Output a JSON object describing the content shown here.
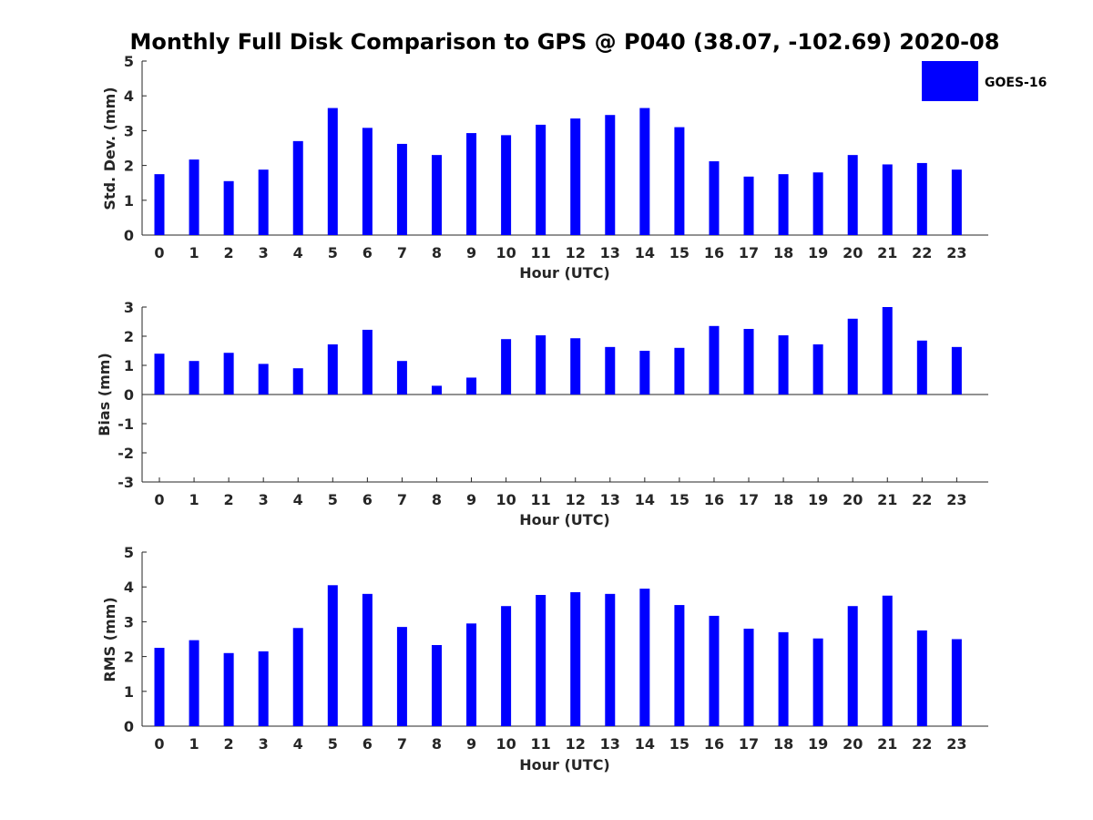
{
  "figure": {
    "title": "Monthly Full Disk Comparison to GPS @ P040 (38.07, -102.69) 2020-08",
    "bar_color": "#0000ff",
    "axis_color": "#262626",
    "legend": {
      "label": "GOES-16",
      "placement": "top-right"
    }
  },
  "chart_data": [
    {
      "type": "bar",
      "xlabel": "Hour (UTC)",
      "ylabel": "Std. Dev. (mm)",
      "ylim": [
        0,
        5
      ],
      "yticks": [
        0,
        1,
        2,
        3,
        4,
        5
      ],
      "categories": [
        0,
        1,
        2,
        3,
        4,
        5,
        6,
        7,
        8,
        9,
        10,
        11,
        12,
        13,
        14,
        15,
        16,
        17,
        18,
        19,
        20,
        21,
        22,
        23
      ],
      "series": [
        {
          "name": "GOES-16",
          "values": [
            1.75,
            2.17,
            1.55,
            1.88,
            2.7,
            3.65,
            3.08,
            2.62,
            2.3,
            2.93,
            2.87,
            3.17,
            3.35,
            3.45,
            3.65,
            3.1,
            2.12,
            1.68,
            1.75,
            1.8,
            2.3,
            2.03,
            2.07,
            1.88
          ]
        }
      ],
      "grid": false,
      "legend": true
    },
    {
      "type": "bar",
      "xlabel": "Hour (UTC)",
      "ylabel": "Bias (mm)",
      "ylim": [
        -3,
        3
      ],
      "yticks": [
        -3,
        -2,
        -1,
        0,
        1,
        2,
        3
      ],
      "categories": [
        0,
        1,
        2,
        3,
        4,
        5,
        6,
        7,
        8,
        9,
        10,
        11,
        12,
        13,
        14,
        15,
        16,
        17,
        18,
        19,
        20,
        21,
        22,
        23
      ],
      "series": [
        {
          "name": "GOES-16",
          "values": [
            1.4,
            1.15,
            1.43,
            1.05,
            0.9,
            1.72,
            2.22,
            1.15,
            0.3,
            0.58,
            1.9,
            2.03,
            1.93,
            1.63,
            1.5,
            1.6,
            2.35,
            2.25,
            2.03,
            1.72,
            2.6,
            3.0,
            1.85,
            1.63
          ]
        }
      ],
      "grid": false,
      "legend": false
    },
    {
      "type": "bar",
      "xlabel": "Hour (UTC)",
      "ylabel": "RMS (mm)",
      "ylim": [
        0,
        5
      ],
      "yticks": [
        0,
        1,
        2,
        3,
        4,
        5
      ],
      "categories": [
        0,
        1,
        2,
        3,
        4,
        5,
        6,
        7,
        8,
        9,
        10,
        11,
        12,
        13,
        14,
        15,
        16,
        17,
        18,
        19,
        20,
        21,
        22,
        23
      ],
      "series": [
        {
          "name": "GOES-16",
          "values": [
            2.25,
            2.47,
            2.1,
            2.15,
            2.82,
            4.05,
            3.8,
            2.85,
            2.33,
            2.95,
            3.45,
            3.77,
            3.85,
            3.8,
            3.95,
            3.48,
            3.17,
            2.8,
            2.7,
            2.52,
            3.45,
            3.75,
            2.75,
            2.5
          ]
        }
      ],
      "grid": false,
      "legend": false
    }
  ]
}
